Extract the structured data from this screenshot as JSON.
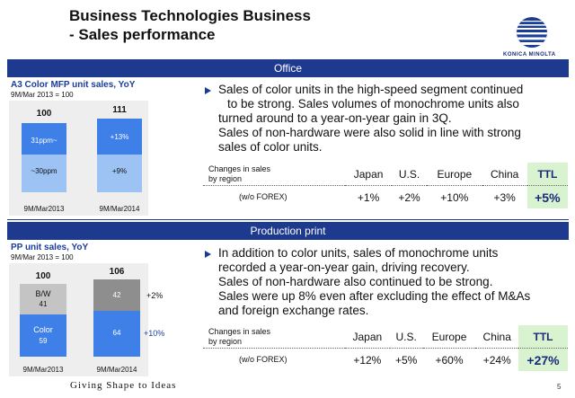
{
  "header": {
    "title_line1": "Business Technologies Business",
    "title_line2": "- Sales performance",
    "logo_text": "KONICA MINOLTA"
  },
  "office": {
    "band": "Office",
    "chart": {
      "title": "A3 Color MFP unit sales, YoY",
      "note": "9M/Mar 2013 = 100",
      "bars": [
        {
          "x_label": "9M/Mar2013",
          "total": "100",
          "upper_label": "31ppm~",
          "lower_label": "~30ppm"
        },
        {
          "x_label": "9M/Mar2014",
          "total": "111",
          "upper_label": "+13%",
          "lower_label": "+9%"
        }
      ]
    },
    "bullet_lines": [
      "Sales of color units in the high-speed segment continued",
      "to be strong.  Sales volumes of monochrome units also",
      "turned around to a year-on-year gain in 3Q.",
      "Sales of non-hardware were also solid in line with strong",
      "sales of color units."
    ],
    "table": {
      "label_line1": "Changes in sales",
      "label_line2": "by region",
      "sub_label": "(w/o FOREX)",
      "headers": [
        "Japan",
        "U.S.",
        "Europe",
        "China",
        "TTL"
      ],
      "values": [
        "+1%",
        "+2%",
        "+10%",
        "+3%",
        "+5%"
      ]
    }
  },
  "production": {
    "band": "Production print",
    "chart": {
      "title": "PP unit sales, YoY",
      "note": "9M/Mar 2013 = 100",
      "bars": [
        {
          "x_label": "9M/Mar2013",
          "total": "100",
          "upper_label": "B/W",
          "upper_value": "41",
          "lower_label": "Color",
          "lower_value": "59"
        },
        {
          "x_label": "9M/Mar2014",
          "total": "106",
          "upper_value": "42",
          "lower_value": "64"
        }
      ],
      "side_labels": {
        "bw": "+2%",
        "color": "+10%"
      }
    },
    "bullet_lines": [
      "In addition to color units, sales of monochrome units",
      "recorded a year-on-year gain, driving recovery.",
      "Sales of non-hardware also continued to be strong.",
      "Sales were up 8% even after excluding the effect of M&As",
      "and foreign exchange rates."
    ],
    "table": {
      "label_line1": "Changes in sales",
      "label_line2": "by region",
      "sub_label": "(w/o FOREX)",
      "headers": [
        "Japan",
        "U.S.",
        "Europe",
        "China",
        "TTL"
      ],
      "values": [
        "+12%",
        "+5%",
        "+60%",
        "+24%",
        "+27%"
      ]
    }
  },
  "footer": {
    "slogan": "Giving Shape to Ideas",
    "page_number": "5"
  },
  "colors": {
    "navy": "#1e3a8f",
    "bar_light": "#9dc3f5",
    "bar_mid": "#3f7fe8",
    "gray_light": "#c4c4c4",
    "gray_dark": "#8e8e8e",
    "ttl_bg": "#d9f2d0"
  }
}
